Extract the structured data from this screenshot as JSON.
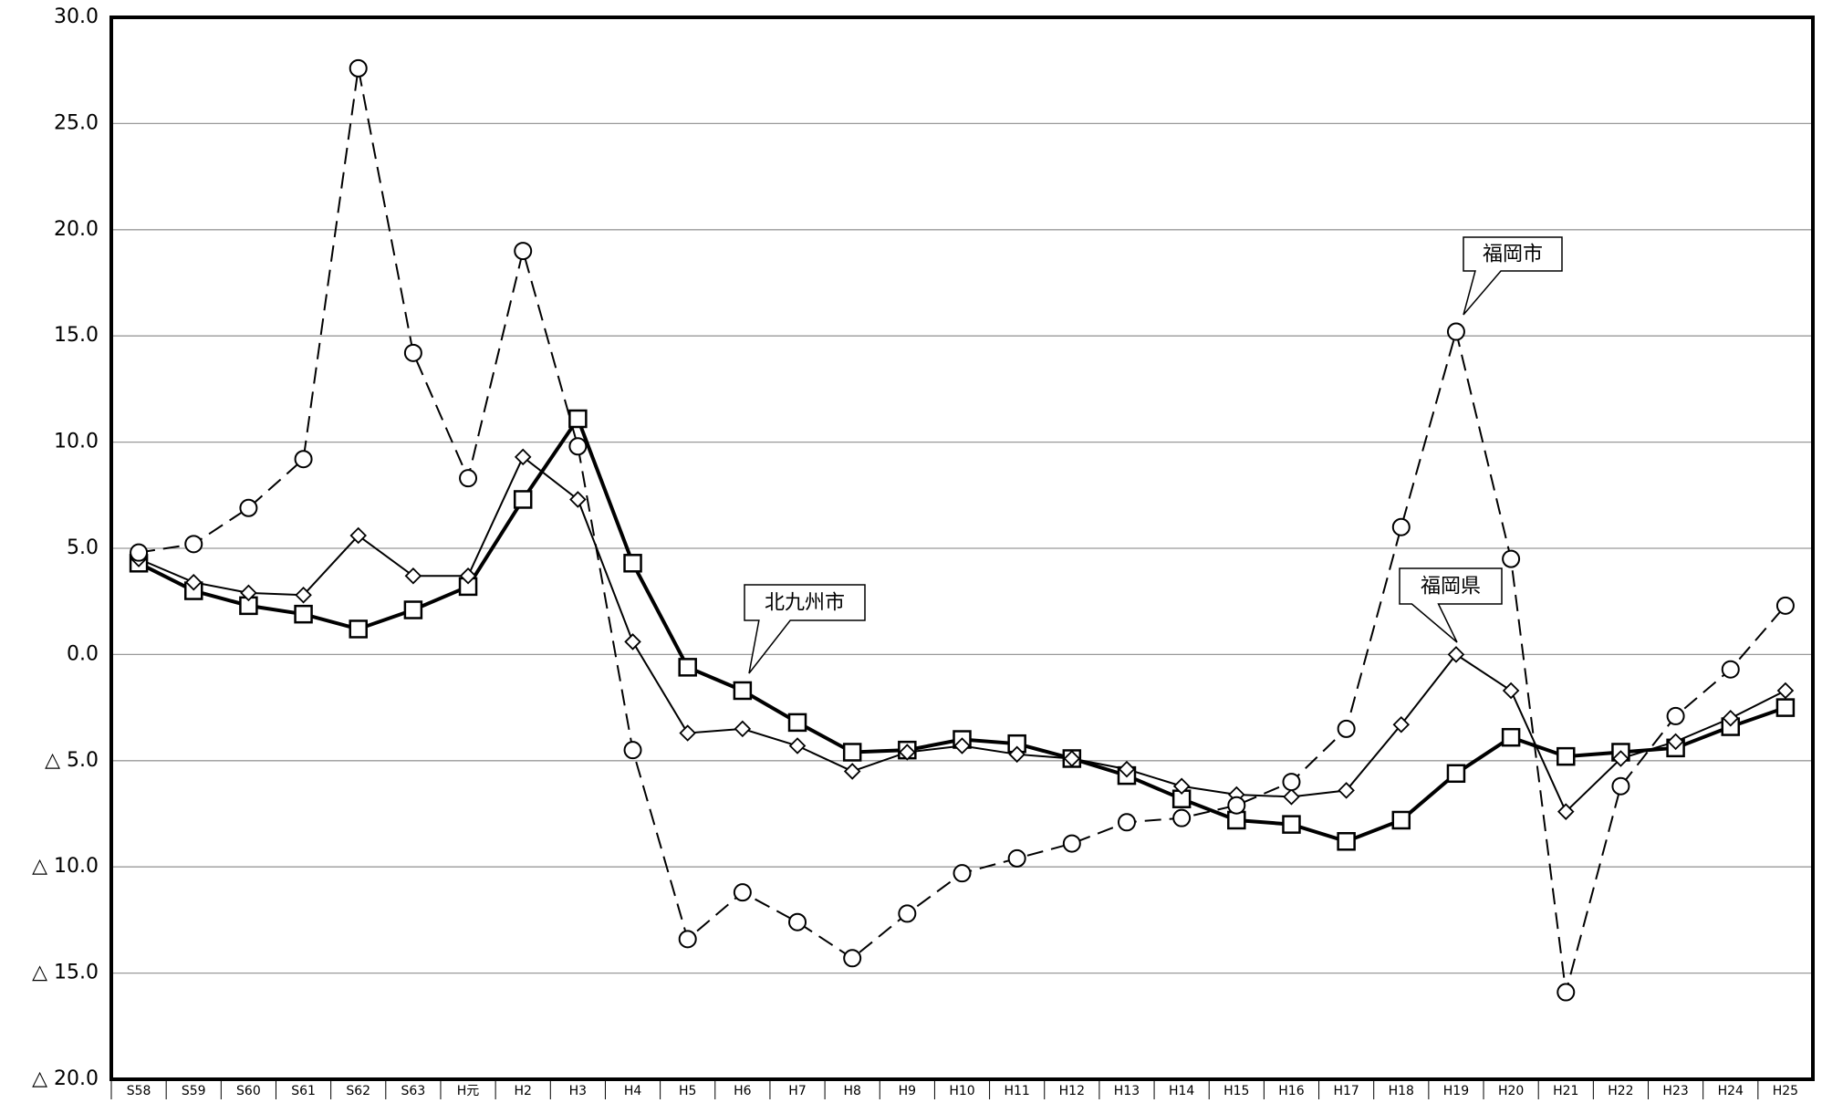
{
  "chart_data": {
    "type": "line",
    "categories": [
      "S58",
      "S59",
      "S60",
      "S61",
      "S62",
      "S63",
      "H元",
      "H2",
      "H3",
      "H4",
      "H5",
      "H6",
      "H7",
      "H8",
      "H9",
      "H10",
      "H11",
      "H12",
      "H13",
      "H14",
      "H15",
      "H16",
      "H17",
      "H18",
      "H19",
      "H20",
      "H21",
      "H22",
      "H23",
      "H24",
      "H25"
    ],
    "series": [
      {
        "name": "北九州市",
        "color": "#000000",
        "marker": "square",
        "line_style": "solid",
        "values": [
          4.3,
          3.0,
          2.3,
          1.9,
          1.2,
          2.1,
          3.2,
          7.3,
          11.1,
          4.3,
          -0.6,
          -1.7,
          -3.2,
          -4.6,
          -4.5,
          -4.0,
          -4.2,
          -4.9,
          -5.7,
          -6.8,
          -7.8,
          -8.0,
          -8.8,
          -7.8,
          -5.6,
          -3.9,
          -4.8,
          -4.6,
          -4.4,
          -3.4,
          -2.5
        ]
      },
      {
        "name": "福岡県",
        "color": "#000000",
        "marker": "diamond",
        "line_style": "solid",
        "values": [
          4.5,
          3.4,
          2.9,
          2.8,
          5.6,
          3.7,
          3.7,
          9.3,
          7.3,
          0.6,
          -3.7,
          -3.5,
          -4.3,
          -5.5,
          -4.6,
          -4.3,
          -4.7,
          -4.9,
          -5.4,
          -6.2,
          -6.6,
          -6.7,
          -6.4,
          -3.3,
          0.0,
          -1.7,
          -7.4,
          -4.9,
          -4.1,
          -3.0,
          -1.7
        ]
      },
      {
        "name": "福岡市",
        "color": "#000000",
        "marker": "circle",
        "line_style": "dashed",
        "values": [
          4.8,
          5.2,
          6.9,
          9.2,
          27.6,
          14.2,
          8.3,
          19.0,
          9.8,
          -4.5,
          -13.4,
          -11.2,
          -12.6,
          -14.3,
          -12.2,
          -10.3,
          -9.6,
          -8.9,
          -7.9,
          -7.7,
          -7.1,
          -6.0,
          -3.5,
          6.0,
          15.2,
          4.5,
          -15.9,
          -6.2,
          -2.9,
          -0.7,
          2.3
        ]
      }
    ],
    "ylim": [
      -20,
      30
    ],
    "yticks": [
      {
        "value": -20,
        "label": "△ 20.0"
      },
      {
        "value": -15,
        "label": "△ 15.0"
      },
      {
        "value": -10,
        "label": "△ 10.0"
      },
      {
        "value": -5,
        "label": "△ 5.0"
      },
      {
        "value": 0,
        "label": "0.0"
      },
      {
        "value": 5,
        "label": "5.0"
      },
      {
        "value": 10,
        "label": "10.0"
      },
      {
        "value": 15,
        "label": "15.0"
      },
      {
        "value": 20,
        "label": "20.0"
      },
      {
        "value": 25,
        "label": "25.0"
      },
      {
        "value": 30,
        "label": "30.0"
      }
    ],
    "grid": true
  }
}
